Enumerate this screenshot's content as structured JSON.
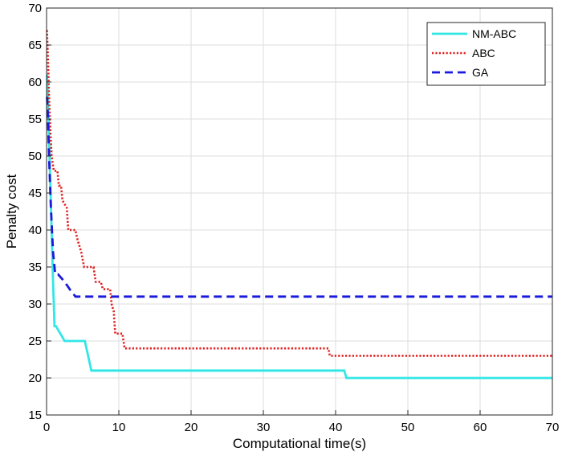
{
  "chart_data": {
    "type": "line",
    "title": "",
    "xlabel": "Computational time(s)",
    "ylabel": "Penalty cost",
    "xlim": [
      0,
      70
    ],
    "ylim": [
      15,
      70
    ],
    "xticks": [
      "0",
      "10",
      "20",
      "30",
      "40",
      "50",
      "60",
      "70"
    ],
    "yticks": [
      "15",
      "20",
      "25",
      "30",
      "35",
      "40",
      "45",
      "50",
      "55",
      "60",
      "65",
      "70"
    ],
    "grid": true,
    "legend_position": "top-right",
    "series": [
      {
        "name": "NM-ABC",
        "color": "#33e6e6",
        "style": "solid",
        "points": [
          [
            0.05,
            61
          ],
          [
            0.2,
            57
          ],
          [
            0.35,
            52
          ],
          [
            0.5,
            47
          ],
          [
            0.7,
            40
          ],
          [
            0.9,
            33
          ],
          [
            1.1,
            27
          ],
          [
            1.3,
            27
          ],
          [
            2.5,
            25
          ],
          [
            5.3,
            25
          ],
          [
            6.2,
            21
          ],
          [
            41.2,
            21
          ],
          [
            41.5,
            20
          ],
          [
            70,
            20
          ]
        ]
      },
      {
        "name": "ABC",
        "color": "#e02020",
        "style": "dotted",
        "points": [
          [
            0.05,
            67
          ],
          [
            0.2,
            63
          ],
          [
            0.35,
            58
          ],
          [
            0.5,
            54
          ],
          [
            0.7,
            50
          ],
          [
            1.0,
            48
          ],
          [
            1.5,
            48
          ],
          [
            1.7,
            46
          ],
          [
            2.0,
            46
          ],
          [
            2.2,
            44
          ],
          [
            2.8,
            43
          ],
          [
            3.0,
            40
          ],
          [
            4.0,
            40
          ],
          [
            4.2,
            39
          ],
          [
            4.8,
            37
          ],
          [
            5.2,
            35
          ],
          [
            6.5,
            35
          ],
          [
            6.8,
            33
          ],
          [
            7.5,
            33
          ],
          [
            7.8,
            32
          ],
          [
            8.8,
            32
          ],
          [
            9.0,
            30
          ],
          [
            9.3,
            29
          ],
          [
            9.5,
            26
          ],
          [
            10.5,
            26
          ],
          [
            10.8,
            24
          ],
          [
            39.0,
            24
          ],
          [
            39.2,
            23
          ],
          [
            70,
            23
          ]
        ]
      },
      {
        "name": "GA",
        "color": "#1a1adc",
        "style": "dashed",
        "points": [
          [
            0.05,
            58
          ],
          [
            0.2,
            55
          ],
          [
            0.35,
            50
          ],
          [
            0.6,
            43
          ],
          [
            0.9,
            37
          ],
          [
            1.2,
            34
          ],
          [
            1.6,
            34
          ],
          [
            2.5,
            33
          ],
          [
            3.2,
            32
          ],
          [
            4.0,
            31
          ],
          [
            70,
            31
          ]
        ]
      }
    ]
  }
}
